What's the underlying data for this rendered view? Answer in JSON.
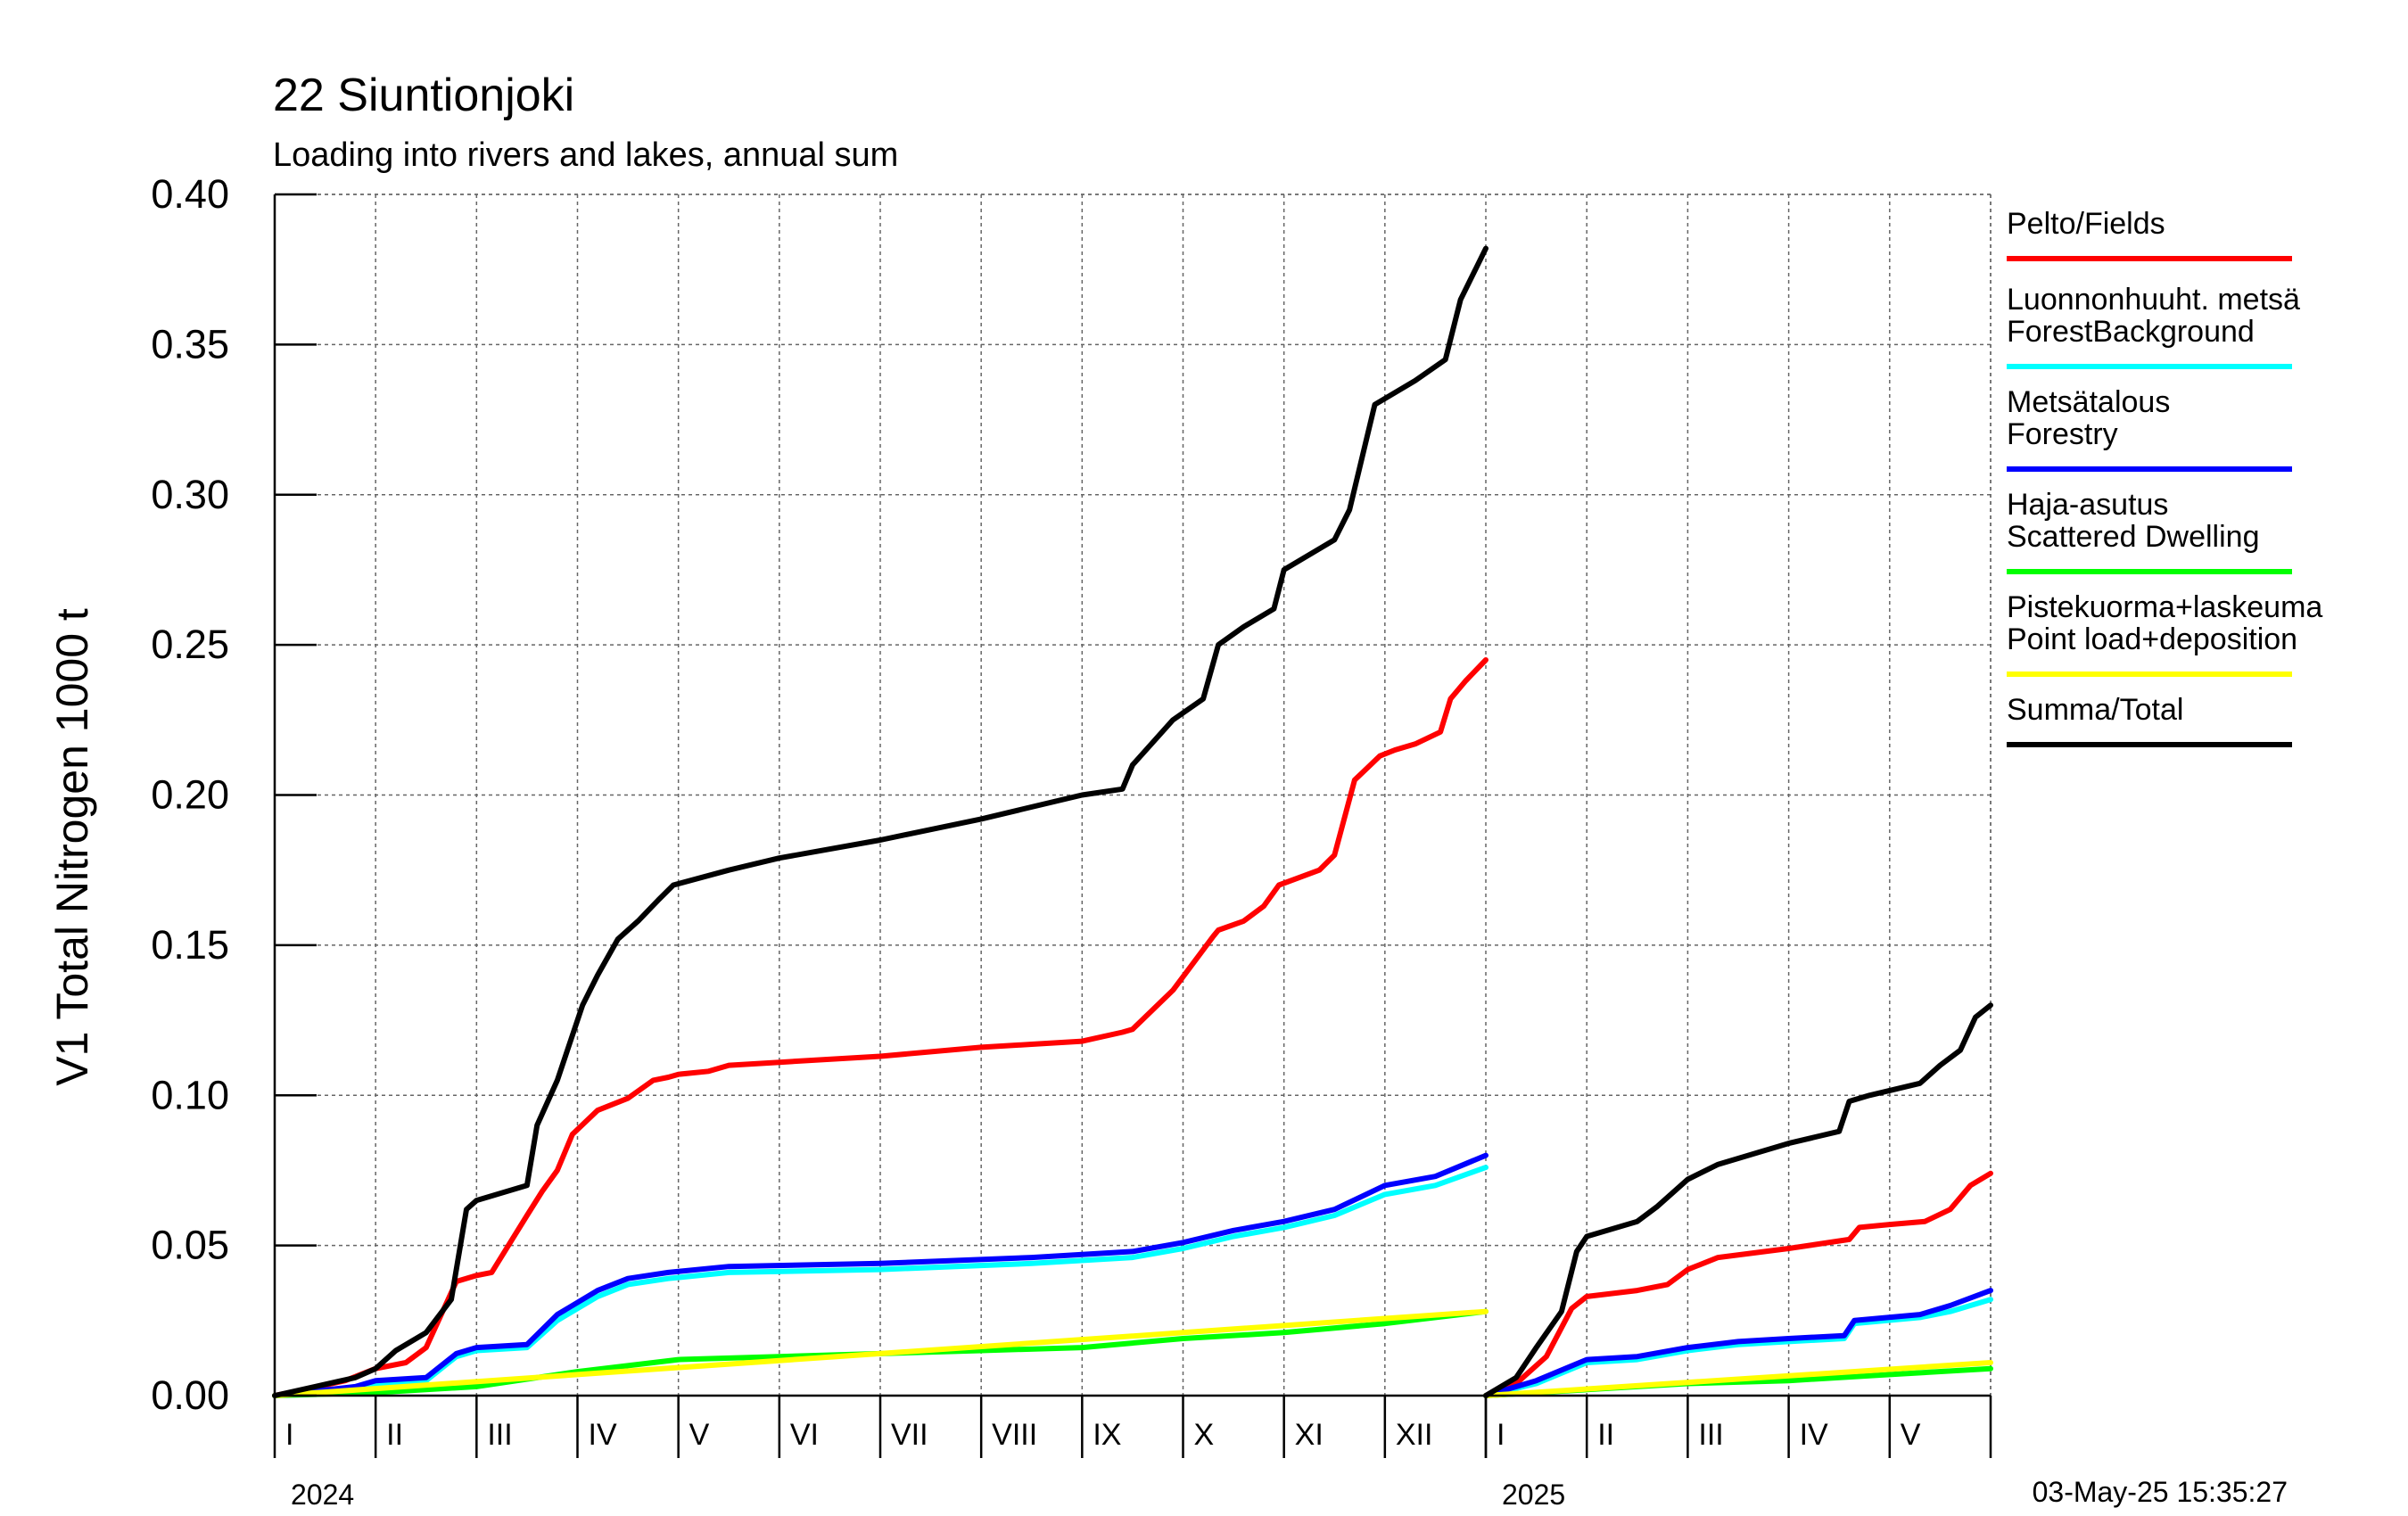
{
  "chart_data": {
    "type": "line",
    "title": "22 Siuntionjoki",
    "subtitle": "Loading into rivers and lakes, annual sum",
    "ylabel": "V1 Total Nitrogen 1000 t",
    "ylim": [
      0,
      0.4
    ],
    "yticks": [
      "0.00",
      "0.05",
      "0.10",
      "0.15",
      "0.20",
      "0.25",
      "0.30",
      "0.35",
      "0.40"
    ],
    "grid": true,
    "legend_position": "right",
    "timestamp": "03-May-25 15:35:27",
    "panels": [
      {
        "year": "2024",
        "months": [
          "I",
          "II",
          "III",
          "IV",
          "V",
          "VI",
          "VII",
          "VIII",
          "IX",
          "X",
          "XI",
          "XII"
        ],
        "x_range": [
          0,
          12
        ],
        "series": [
          {
            "key": "fields",
            "x": [
              0,
              0.3,
              0.7,
              1.0,
              1.3,
              1.5,
              1.8,
              2.0,
              2.15,
              2.5,
              2.65,
              2.8,
              2.95,
              3.2,
              3.5,
              3.75,
              3.9,
              4.0,
              4.3,
              4.5,
              5.0,
              6.0,
              7.0,
              7.5,
              8.0,
              8.4,
              8.5,
              8.9,
              9.3,
              9.35,
              9.6,
              9.8,
              9.95,
              10.35,
              10.5,
              10.7,
              10.95,
              11.1,
              11.3,
              11.55,
              11.65,
              11.8,
              12.0
            ],
            "y": [
              0,
              0.002,
              0.005,
              0.009,
              0.011,
              0.016,
              0.038,
              0.04,
              0.041,
              0.06,
              0.068,
              0.075,
              0.087,
              0.095,
              0.099,
              0.105,
              0.106,
              0.107,
              0.108,
              0.11,
              0.111,
              0.113,
              0.116,
              0.117,
              0.118,
              0.121,
              0.122,
              0.135,
              0.153,
              0.155,
              0.158,
              0.163,
              0.17,
              0.175,
              0.18,
              0.205,
              0.213,
              0.215,
              0.217,
              0.221,
              0.232,
              0.238,
              0.245
            ]
          },
          {
            "key": "forest_background",
            "x": [
              0,
              0.8,
              1.0,
              1.5,
              1.8,
              2.0,
              2.5,
              2.8,
              3.2,
              3.5,
              3.9,
              4.5,
              6.0,
              7.5,
              8.5,
              9.0,
              9.5,
              10.0,
              10.5,
              11.0,
              11.5,
              12.0
            ],
            "y": [
              0,
              0.002,
              0.004,
              0.005,
              0.013,
              0.015,
              0.016,
              0.025,
              0.033,
              0.037,
              0.039,
              0.041,
              0.042,
              0.044,
              0.046,
              0.049,
              0.053,
              0.056,
              0.06,
              0.067,
              0.07,
              0.076
            ]
          },
          {
            "key": "forestry",
            "x": [
              0,
              0.8,
              1.0,
              1.5,
              1.8,
              2.0,
              2.5,
              2.8,
              3.2,
              3.5,
              3.9,
              4.5,
              6.0,
              7.5,
              8.5,
              9.0,
              9.5,
              10.0,
              10.5,
              11.0,
              11.5,
              12.0
            ],
            "y": [
              0,
              0.003,
              0.005,
              0.006,
              0.014,
              0.016,
              0.017,
              0.027,
              0.035,
              0.039,
              0.041,
              0.043,
              0.044,
              0.046,
              0.048,
              0.051,
              0.055,
              0.058,
              0.062,
              0.07,
              0.073,
              0.08
            ]
          },
          {
            "key": "scattered_dwelling",
            "x": [
              0,
              1.0,
              2.0,
              3.0,
              4.0,
              5.0,
              6.0,
              7.0,
              8.0,
              9.0,
              10.0,
              11.0,
              12.0
            ],
            "y": [
              0,
              0.001,
              0.003,
              0.008,
              0.012,
              0.013,
              0.014,
              0.015,
              0.016,
              0.019,
              0.021,
              0.024,
              0.028
            ]
          },
          {
            "key": "point_load",
            "x": [
              0,
              12.0
            ],
            "y": [
              0,
              0.028
            ]
          },
          {
            "key": "total",
            "x": [
              0,
              0.4,
              0.8,
              1.0,
              1.2,
              1.5,
              1.75,
              1.9,
              2.0,
              2.5,
              2.6,
              2.8,
              2.9,
              3.05,
              3.2,
              3.4,
              3.6,
              3.8,
              3.95,
              4.5,
              5.0,
              6.0,
              7.0,
              8.0,
              8.4,
              8.5,
              8.9,
              9.2,
              9.35,
              9.6,
              9.9,
              10.0,
              10.5,
              10.65,
              10.9,
              11.3,
              11.6,
              11.75,
              12.0
            ],
            "y": [
              0,
              0.003,
              0.006,
              0.009,
              0.015,
              0.021,
              0.032,
              0.062,
              0.065,
              0.07,
              0.09,
              0.105,
              0.115,
              0.13,
              0.14,
              0.152,
              0.158,
              0.165,
              0.17,
              0.175,
              0.179,
              0.185,
              0.192,
              0.2,
              0.202,
              0.21,
              0.225,
              0.232,
              0.25,
              0.256,
              0.262,
              0.275,
              0.285,
              0.295,
              0.33,
              0.338,
              0.345,
              0.365,
              0.382
            ]
          }
        ]
      },
      {
        "year": "2025",
        "months": [
          "I",
          "II",
          "III",
          "IV",
          "V"
        ],
        "x_range": [
          0,
          5
        ],
        "series": [
          {
            "key": "fields",
            "x": [
              0,
              0.3,
              0.6,
              0.85,
              1.0,
              1.5,
              1.8,
              2.0,
              2.3,
              3.0,
              3.6,
              3.7,
              4.0,
              4.35,
              4.6,
              4.8,
              5.0
            ],
            "y": [
              0,
              0.004,
              0.013,
              0.029,
              0.033,
              0.035,
              0.037,
              0.042,
              0.046,
              0.049,
              0.052,
              0.056,
              0.057,
              0.058,
              0.062,
              0.07,
              0.074
            ]
          },
          {
            "key": "forest_background",
            "x": [
              0,
              0.5,
              1.0,
              1.5,
              2.0,
              2.5,
              3.0,
              3.55,
              3.65,
              4.3,
              4.6,
              5.0
            ],
            "y": [
              0,
              0.004,
              0.011,
              0.012,
              0.015,
              0.017,
              0.018,
              0.019,
              0.024,
              0.026,
              0.028,
              0.032
            ]
          },
          {
            "key": "forestry",
            "x": [
              0,
              0.5,
              1.0,
              1.5,
              2.0,
              2.5,
              3.0,
              3.55,
              3.65,
              4.3,
              4.6,
              5.0
            ],
            "y": [
              0,
              0.005,
              0.012,
              0.013,
              0.016,
              0.018,
              0.019,
              0.02,
              0.025,
              0.027,
              0.03,
              0.035
            ]
          },
          {
            "key": "scattered_dwelling",
            "x": [
              0,
              1.0,
              2.0,
              3.0,
              4.0,
              5.0
            ],
            "y": [
              0,
              0.002,
              0.004,
              0.005,
              0.007,
              0.009
            ]
          },
          {
            "key": "point_load",
            "x": [
              0,
              5.0
            ],
            "y": [
              0,
              0.011
            ]
          },
          {
            "key": "total",
            "x": [
              0,
              0.3,
              0.5,
              0.75,
              0.9,
              1.0,
              1.5,
              1.7,
              2.0,
              2.3,
              2.7,
              3.0,
              3.5,
              3.6,
              3.8,
              4.3,
              4.5,
              4.7,
              4.85,
              5.0
            ],
            "y": [
              0,
              0.006,
              0.016,
              0.028,
              0.048,
              0.053,
              0.058,
              0.063,
              0.072,
              0.077,
              0.081,
              0.084,
              0.088,
              0.098,
              0.1,
              0.104,
              0.11,
              0.115,
              0.126,
              0.13
            ]
          }
        ]
      }
    ],
    "legend": [
      {
        "key": "fields",
        "label_line1": "Pelto/Fields",
        "label_line2": "",
        "color": "#ff0000"
      },
      {
        "key": "forest_background",
        "label_line1": "Luonnonhuuht. metsä",
        "label_line2": "ForestBackground",
        "color": "#00ffff"
      },
      {
        "key": "forestry",
        "label_line1": "Metsätalous",
        "label_line2": "Forestry",
        "color": "#0000ff"
      },
      {
        "key": "scattered_dwelling",
        "label_line1": "Haja-asutus",
        "label_line2": "Scattered Dwelling",
        "color": "#00ff00"
      },
      {
        "key": "point_load",
        "label_line1": "Pistekuorma+laskeuma",
        "label_line2": "Point load+deposition",
        "color": "#ffff00"
      },
      {
        "key": "total",
        "label_line1": "Summa/Total",
        "label_line2": "",
        "color": "#000000"
      }
    ]
  }
}
